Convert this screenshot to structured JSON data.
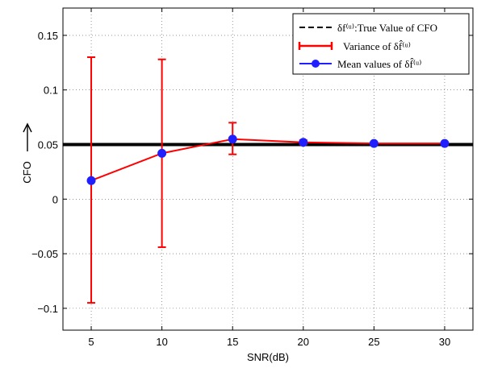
{
  "chart_data": {
    "type": "line",
    "xlabel": "SNR(dB)",
    "ylabel": "CFO",
    "xlim": [
      3,
      32
    ],
    "ylim": [
      -0.12,
      0.175
    ],
    "xticks": [
      5,
      10,
      15,
      20,
      25,
      30
    ],
    "yticks": [
      -0.1,
      -0.05,
      0,
      0.05,
      0.1,
      0.15
    ],
    "ytick_labels": [
      "−0.1",
      "−0.05",
      "0",
      "0.05",
      "0.1",
      "0.15"
    ],
    "grid": true,
    "legend_position": "top-right",
    "true_value": {
      "name": "δf⁽ᵘ⁾:True Value of CFO",
      "y": 0.05,
      "color": "#000000"
    },
    "series": [
      {
        "name": "Mean values of δf̂⁽ᵘ⁾",
        "color": "#1f1fff",
        "x": [
          5,
          10,
          15,
          20,
          25,
          30
        ],
        "y": [
          0.017,
          0.042,
          0.055,
          0.052,
          0.051,
          0.051
        ]
      }
    ],
    "errorbars": {
      "name": "Variance of δf̂⁽ᵘ⁾",
      "color": "#ff0000",
      "x": [
        5,
        10,
        15,
        20,
        25,
        30
      ],
      "lower": [
        -0.095,
        -0.044,
        0.041,
        0.05,
        0.05,
        0.05
      ],
      "upper": [
        0.13,
        0.128,
        0.07,
        0.054,
        0.052,
        0.052
      ]
    }
  }
}
